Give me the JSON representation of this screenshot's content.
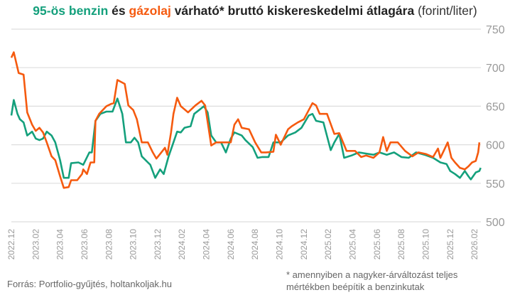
{
  "title": {
    "part1": "95-ös benzin",
    "part2": " és ",
    "part3": "gázolaj",
    "part4": " várható* bruttó kiskereskedelmi átlagára ",
    "unit": "(forint/liter)"
  },
  "source": "Forrás: Portfolio-gyűjtés, holtankoljak.hu",
  "note": [
    "* amennyiben a nagyker-árváltozást teljes",
    "mértékben beépítik a benzinkutak"
  ],
  "colors": {
    "benzin": "#14a07c",
    "gazolaj": "#f55a0f",
    "grid": "#dddddd"
  },
  "chart_data": {
    "type": "line",
    "title": "95-ös benzin és gázolaj várható* bruttó kiskereskedelmi átlagára (forint/liter)",
    "x_unit": "months since 2022.12",
    "xlim": [
      0,
      38.5
    ],
    "ylim": [
      500,
      750
    ],
    "yticks": [
      500,
      550,
      600,
      650,
      700,
      750
    ],
    "xtick_labels": [
      "2022.12",
      "2023.02",
      "2023.04",
      "2023.06",
      "2023.08",
      "2023.10",
      "2023.12",
      "2024.02",
      "2024.04",
      "2024.06",
      "2024.08",
      "2024.10",
      "2024.12",
      "2025.02",
      "2025.04",
      "2025.06",
      "2025.08",
      "2025.10",
      "2025.12",
      "2026.02"
    ],
    "grid": true,
    "series": [
      {
        "name": "95-ös benzin",
        "color": "#14a07c",
        "x": [
          0,
          0.2,
          0.5,
          0.7,
          1.0,
          1.3,
          1.7,
          2.0,
          2.3,
          2.6,
          2.9,
          3.3,
          3.6,
          4.0,
          4.3,
          4.7,
          4.9,
          5.5,
          5.9,
          6.4,
          6.6,
          6.9,
          7.3,
          7.8,
          8.3,
          8.7,
          9.1,
          9.4,
          9.8,
          10.1,
          10.4,
          10.7,
          11.2,
          11.4,
          11.8,
          12.2,
          12.5,
          12.9,
          13.3,
          13.6,
          13.9,
          14.2,
          14.7,
          15.0,
          15.4,
          15.8,
          16.1,
          16.4,
          16.8,
          17.2,
          17.6,
          18.0,
          18.3,
          18.6,
          18.9,
          19.2,
          19.8,
          20.2,
          20.6,
          21.1,
          21.5,
          22.1,
          22.7,
          23.3,
          23.8,
          24.4,
          24.7,
          25.0,
          25.6,
          26.2,
          26.5,
          26.9,
          27.3,
          27.9,
          28.5,
          28.9,
          29.7,
          30.2,
          30.8,
          31.4,
          32.0,
          32.6,
          33.2,
          33.9,
          34.6,
          35.2,
          35.7,
          36.0,
          36.4,
          36.8,
          37.2,
          37.5,
          37.7,
          38.1,
          38.4,
          38.5
        ],
        "y": [
          638,
          658,
          640,
          633,
          629,
          612,
          617,
          608,
          606,
          608,
          617,
          612,
          603,
          580,
          557,
          557,
          576,
          577,
          574,
          590,
          590,
          631,
          640,
          643,
          643,
          660,
          640,
          603,
          603,
          609,
          603,
          585,
          577,
          574,
          557,
          568,
          562,
          585,
          603,
          617,
          616,
          622,
          624,
          640,
          645,
          650,
          642,
          612,
          603,
          603,
          590,
          608,
          616,
          614,
          612,
          606,
          597,
          583,
          584,
          584,
          603,
          603,
          612,
          616,
          622,
          638,
          640,
          631,
          629,
          593,
          603,
          614,
          583,
          586,
          590,
          589,
          587,
          590,
          587,
          590,
          584,
          583,
          590,
          587,
          583,
          577,
          575,
          566,
          562,
          557,
          566,
          559,
          555,
          564,
          566,
          570
        ]
      },
      {
        "name": "gázolaj",
        "color": "#f55a0f",
        "x": [
          0,
          0.2,
          0.6,
          1.0,
          1.3,
          1.7,
          2.0,
          2.3,
          2.6,
          2.9,
          3.3,
          3.6,
          4.0,
          4.3,
          4.7,
          4.9,
          5.4,
          5.8,
          5.9,
          6.2,
          6.5,
          6.8,
          6.9,
          7.2,
          7.8,
          8.2,
          8.4,
          8.7,
          9.3,
          9.6,
          10.0,
          10.3,
          10.7,
          11.2,
          11.6,
          11.9,
          12.4,
          12.6,
          12.8,
          13.1,
          13.3,
          13.6,
          13.9,
          14.5,
          15.1,
          15.6,
          15.9,
          16.4,
          16.8,
          17.6,
          18.0,
          18.3,
          18.6,
          18.9,
          19.5,
          20.0,
          20.5,
          20.9,
          21.5,
          21.7,
          22.1,
          22.7,
          23.0,
          23.5,
          24.0,
          24.4,
          24.7,
          25.0,
          25.3,
          25.9,
          26.5,
          26.9,
          27.5,
          28.2,
          28.7,
          29.1,
          29.7,
          30.2,
          30.5,
          30.8,
          31.1,
          31.7,
          32.3,
          32.9,
          33.4,
          34.0,
          34.6,
          35.0,
          35.2,
          35.5,
          35.8,
          36.1,
          36.4,
          36.8,
          37.2,
          37.5,
          37.8,
          38.1,
          38.3,
          38.4
        ],
        "y": [
          713,
          720,
          693,
          691,
          642,
          626,
          618,
          622,
          616,
          603,
          585,
          580,
          559,
          544,
          545,
          554,
          554,
          562,
          568,
          562,
          577,
          577,
          631,
          640,
          650,
          653,
          654,
          684,
          679,
          651,
          645,
          633,
          603,
          603,
          590,
          582,
          592,
          596,
          587,
          616,
          640,
          661,
          650,
          642,
          651,
          657,
          651,
          599,
          603,
          603,
          603,
          626,
          633,
          622,
          620,
          603,
          590,
          590,
          591,
          613,
          600,
          620,
          624,
          629,
          633,
          645,
          654,
          651,
          640,
          640,
          614,
          615,
          592,
          592,
          584,
          586,
          583,
          590,
          610,
          592,
          603,
          603,
          592,
          585,
          590,
          588,
          584,
          595,
          583,
          593,
          603,
          583,
          577,
          570,
          568,
          572,
          577,
          579,
          590,
          603
        ]
      }
    ]
  }
}
